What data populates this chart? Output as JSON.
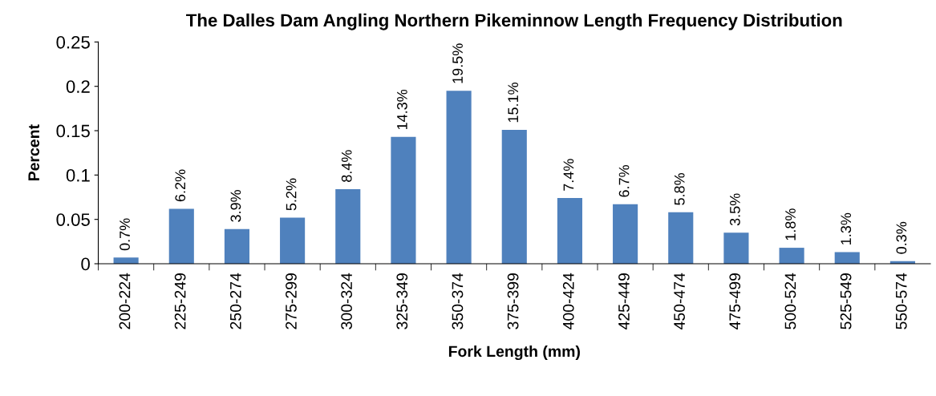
{
  "chart_data": {
    "type": "bar",
    "title": "The Dalles Dam Angling Northern Pikeminnow Length Frequency Distribution",
    "xlabel": "Fork Length (mm)",
    "ylabel": "Percent",
    "categories": [
      "200-224",
      "225-249",
      "250-274",
      "275-299",
      "300-324",
      "325-349",
      "350-374",
      "375-399",
      "400-424",
      "425-449",
      "450-474",
      "475-499",
      "500-524",
      "525-549",
      "550-574"
    ],
    "values": [
      0.007,
      0.062,
      0.039,
      0.052,
      0.084,
      0.143,
      0.195,
      0.151,
      0.074,
      0.067,
      0.058,
      0.035,
      0.018,
      0.013,
      0.003
    ],
    "value_labels": [
      "0.7%",
      "6.2%",
      "3.9%",
      "5.2%",
      "8.4%",
      "14.3%",
      "19.5%",
      "15.1%",
      "7.4%",
      "6.7%",
      "5.8%",
      "3.5%",
      "1.8%",
      "1.3%",
      "0.3%"
    ],
    "color": "#4f81bd",
    "ylim": [
      0,
      0.25
    ],
    "yticks": [
      0,
      0.05,
      0.1,
      0.15,
      0.2,
      0.25
    ],
    "grid": false,
    "legend": false
  }
}
